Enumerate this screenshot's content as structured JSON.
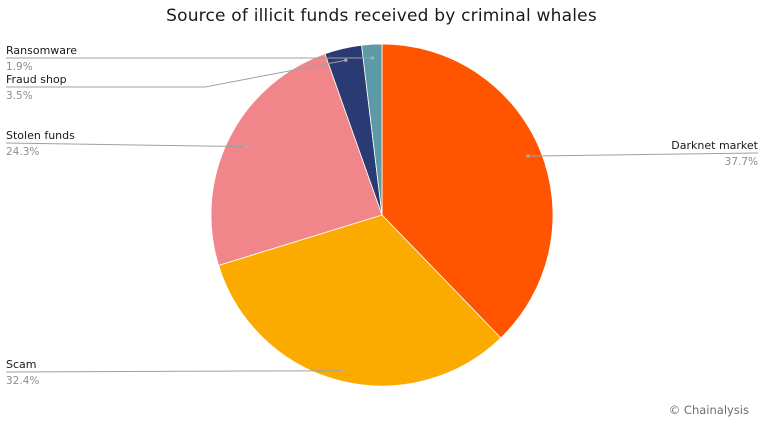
{
  "chart_data": {
    "type": "pie",
    "title": "Source of illicit funds received by criminal whales",
    "slices": [
      {
        "label": "Darknet market",
        "value": 37.7,
        "value_label": "37.7%",
        "color": "#FF5500"
      },
      {
        "label": "Scam",
        "value": 32.4,
        "value_label": "32.4%",
        "color": "#FBAA00"
      },
      {
        "label": "Stolen funds",
        "value": 24.3,
        "value_label": "24.3%",
        "color": "#F0858A"
      },
      {
        "label": "Fraud shop",
        "value": 3.5,
        "value_label": "3.5%",
        "color": "#2A3A72"
      },
      {
        "label": "Ransomware",
        "value": 1.9,
        "value_label": "1.9%",
        "color": "#5C9AA6"
      }
    ],
    "start": "12 o'clock",
    "direction": "clockwise",
    "legend": "none"
  },
  "credit": "© Chainalysis"
}
